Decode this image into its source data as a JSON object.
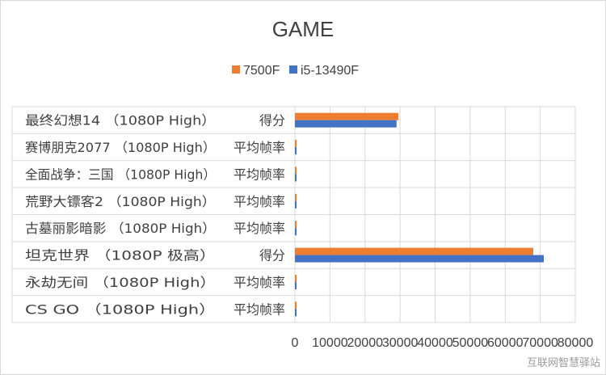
{
  "chart_data": {
    "type": "bar",
    "orientation": "horizontal",
    "title": "GAME",
    "legend_position": "top",
    "grid": true,
    "xlim": [
      0,
      80000
    ],
    "x_ticks": [
      "0",
      "10000",
      "20000",
      "30000",
      "40000",
      "50000",
      "60000",
      "70000",
      "80000"
    ],
    "groups": [
      {
        "name": "最终幻想14（1080P High）",
        "lines": [
          "最终幻想14",
          "（1080P",
          "High）"
        ]
      },
      {
        "name": "赛博朋克2077（1080P High）",
        "lines": [
          "赛博朋克2077",
          "（1080P",
          "High）"
        ]
      },
      {
        "name": "全面战争：三国（1080P High）",
        "lines": [
          "全面战争：三国",
          "（1080P",
          "High）"
        ]
      },
      {
        "name": "荒野大镖客2（1080P High）",
        "lines": [
          "荒野大镖客2",
          "（1080P",
          "High）"
        ]
      },
      {
        "name": "古墓丽影暗影（1080P High）",
        "lines": [
          "古墓丽影暗影",
          "（1080P",
          "High）"
        ]
      },
      {
        "name": "坦克世界（1080P 极高）",
        "lines": [
          "坦克世界",
          "（1080P",
          "极高）"
        ]
      },
      {
        "name": "永劫无间（1080P High）",
        "lines": [
          "永劫无间",
          "（1080P",
          "High）"
        ]
      },
      {
        "name": "CS GO（1080P High）",
        "lines": [
          "CS GO",
          "（1080P",
          "High）"
        ]
      }
    ],
    "categories": [
      "得分",
      "平均帧率",
      "平均帧率",
      "平均帧率",
      "平均帧率",
      "得分",
      "平均帧率",
      "平均帧率"
    ],
    "series": [
      {
        "name": "7500F",
        "color": "#ed7d31",
        "values": [
          29500,
          180,
          160,
          140,
          170,
          68000,
          230,
          420
        ]
      },
      {
        "name": "i5-13490F",
        "color": "#4472c4",
        "values": [
          29000,
          190,
          165,
          145,
          175,
          71000,
          240,
          440
        ]
      }
    ]
  },
  "watermark": "互联网智慧驿站"
}
